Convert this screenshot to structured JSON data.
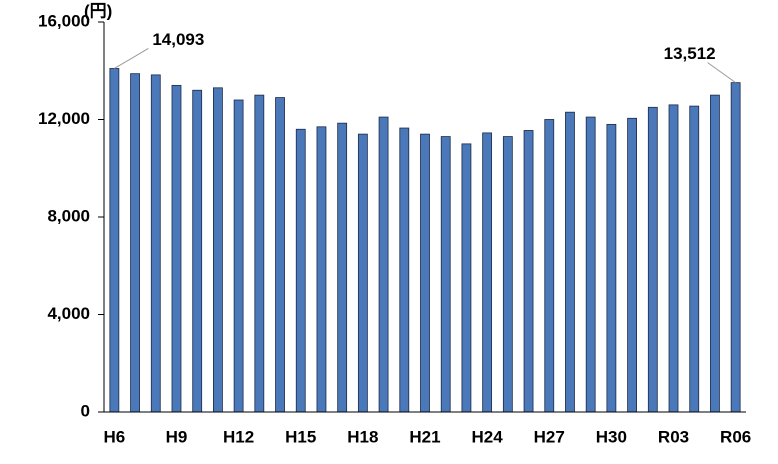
{
  "chart_data": {
    "type": "bar",
    "y_unit": "(円)",
    "categories": [
      "H6",
      null,
      null,
      "H9",
      null,
      null,
      "H12",
      null,
      null,
      "H15",
      null,
      null,
      "H18",
      null,
      null,
      "H21",
      null,
      null,
      "H24",
      null,
      null,
      "H27",
      null,
      null,
      "H30",
      null,
      null,
      "R03",
      null,
      null,
      "R06"
    ],
    "values": [
      14093,
      13880,
      13830,
      13400,
      13200,
      13300,
      12800,
      13000,
      12900,
      11600,
      11700,
      11850,
      11400,
      12100,
      11650,
      11400,
      11300,
      11000,
      11450,
      11300,
      11550,
      12000,
      12300,
      12100,
      11800,
      12050,
      12500,
      12600,
      12550,
      13000,
      13512
    ],
    "value_labels": [
      "14,093",
      null,
      null,
      null,
      null,
      null,
      null,
      null,
      null,
      null,
      null,
      null,
      null,
      null,
      null,
      null,
      null,
      null,
      null,
      null,
      null,
      null,
      null,
      null,
      null,
      null,
      null,
      null,
      null,
      null,
      "13,512"
    ],
    "color": "#4a78b8",
    "ylim": [
      0,
      16000
    ],
    "yticks": [
      0,
      {
        "value": 4000,
        "label": "4,000"
      },
      {
        "value": 8000,
        "label": "8,000"
      },
      {
        "value": 12000,
        "label": "12,000"
      },
      {
        "value": 16000,
        "label": "16,000"
      }
    ],
    "grid": false
  }
}
